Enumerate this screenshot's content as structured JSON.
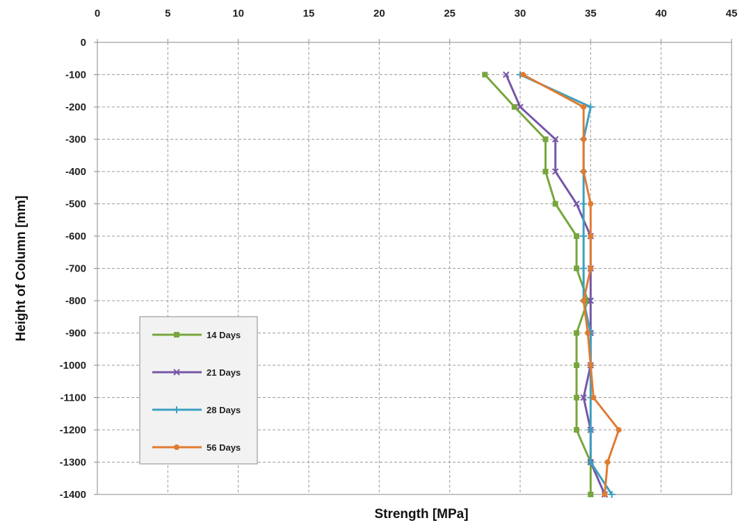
{
  "chart_data": {
    "type": "line",
    "xlabel": "Strength [MPa]",
    "ylabel": "Height of Column [mm]",
    "xlim": [
      0,
      45
    ],
    "ylim": [
      -1400,
      0
    ],
    "x_ticks": [
      0,
      5,
      10,
      15,
      20,
      25,
      30,
      35,
      40,
      45
    ],
    "x_tick_labels": [
      "0",
      "5",
      "10",
      "15",
      "20",
      "25",
      "30",
      "35",
      "40",
      "45"
    ],
    "y_ticks": [
      0,
      -100,
      -200,
      -300,
      -400,
      -500,
      -600,
      -700,
      -800,
      -900,
      -1000,
      -1100,
      -1200,
      -1300,
      -1400
    ],
    "y_tick_labels": [
      "0",
      "-100",
      "-200",
      "-300",
      "-400",
      "-500",
      "-600",
      "-700",
      "-800",
      "-900",
      "-1000",
      "-1100",
      "-1200",
      "-1300",
      "-1400"
    ],
    "x_axis_position": "top",
    "grid": true,
    "legend_position": "bottom-left",
    "series": [
      {
        "name": "14 Days",
        "color": "#77a63c",
        "marker": "square",
        "points": [
          {
            "x": 27.5,
            "y": -100
          },
          {
            "x": 29.6,
            "y": -200
          },
          {
            "x": 31.8,
            "y": -300
          },
          {
            "x": 31.8,
            "y": -400
          },
          {
            "x": 32.5,
            "y": -500
          },
          {
            "x": 34.0,
            "y": -600
          },
          {
            "x": 34.0,
            "y": -700
          },
          {
            "x": 34.8,
            "y": -800
          },
          {
            "x": 34.0,
            "y": -900
          },
          {
            "x": 34.0,
            "y": -1000
          },
          {
            "x": 34.0,
            "y": -1100
          },
          {
            "x": 34.0,
            "y": -1200
          },
          {
            "x": 35.0,
            "y": -1300
          },
          {
            "x": 35.0,
            "y": -1400
          }
        ]
      },
      {
        "name": "21 Days",
        "color": "#7656a6",
        "marker": "x",
        "points": [
          {
            "x": 29.0,
            "y": -100
          },
          {
            "x": 30.0,
            "y": -200
          },
          {
            "x": 32.5,
            "y": -300
          },
          {
            "x": 32.5,
            "y": -400
          },
          {
            "x": 34.0,
            "y": -500
          },
          {
            "x": 35.0,
            "y": -600
          },
          {
            "x": 35.0,
            "y": -700
          },
          {
            "x": 35.0,
            "y": -800
          },
          {
            "x": 35.0,
            "y": -900
          },
          {
            "x": 35.0,
            "y": -1000
          },
          {
            "x": 34.5,
            "y": -1100
          },
          {
            "x": 35.0,
            "y": -1200
          },
          {
            "x": 35.0,
            "y": -1300
          },
          {
            "x": 36.0,
            "y": -1400
          }
        ]
      },
      {
        "name": "28 Days",
        "color": "#3ba0c0",
        "marker": "plus",
        "points": [
          {
            "x": 30.0,
            "y": -100
          },
          {
            "x": 35.0,
            "y": -200
          },
          {
            "x": 34.5,
            "y": -300
          },
          {
            "x": 34.5,
            "y": -400
          },
          {
            "x": 34.5,
            "y": -500
          },
          {
            "x": 34.5,
            "y": -600
          },
          {
            "x": 34.5,
            "y": -700
          },
          {
            "x": 34.5,
            "y": -800
          },
          {
            "x": 35.0,
            "y": -900
          },
          {
            "x": 35.0,
            "y": -1000
          },
          {
            "x": 35.0,
            "y": -1100
          },
          {
            "x": 35.0,
            "y": -1200
          },
          {
            "x": 35.0,
            "y": -1300
          },
          {
            "x": 36.5,
            "y": -1400
          }
        ]
      },
      {
        "name": "56 Days",
        "color": "#e07b30",
        "marker": "dot",
        "points": [
          {
            "x": 30.2,
            "y": -100
          },
          {
            "x": 34.5,
            "y": -200
          },
          {
            "x": 34.5,
            "y": -300
          },
          {
            "x": 34.5,
            "y": -400
          },
          {
            "x": 35.0,
            "y": -500
          },
          {
            "x": 35.0,
            "y": -600
          },
          {
            "x": 35.0,
            "y": -700
          },
          {
            "x": 34.5,
            "y": -800
          },
          {
            "x": 34.8,
            "y": -900
          },
          {
            "x": 35.0,
            "y": -1000
          },
          {
            "x": 35.2,
            "y": -1100
          },
          {
            "x": 37.0,
            "y": -1200
          },
          {
            "x": 36.2,
            "y": -1300
          },
          {
            "x": 36.0,
            "y": -1400
          }
        ]
      }
    ]
  }
}
